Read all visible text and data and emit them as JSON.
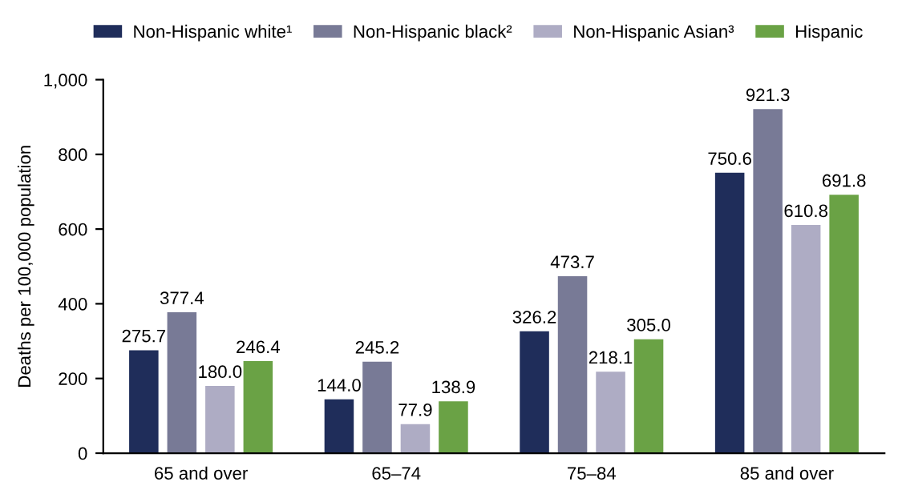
{
  "chart_data": {
    "type": "bar",
    "ylabel": "Deaths per 100,000 population",
    "categories": [
      "65 and over",
      "65–74",
      "75–84",
      "85 and over"
    ],
    "series": [
      {
        "name": "Non-Hispanic white¹",
        "color": "#1f2d5a",
        "values": [
          275.7,
          144.0,
          326.2,
          750.6
        ],
        "value_labels": [
          "275.7",
          "144.0",
          "326.2",
          "750.6"
        ]
      },
      {
        "name": "Non-Hispanic black²",
        "color": "#787a96",
        "values": [
          377.4,
          245.2,
          473.7,
          921.3
        ],
        "value_labels": [
          "377.4",
          "245.2",
          "473.7",
          "921.3"
        ]
      },
      {
        "name": "Non-Hispanic Asian³",
        "color": "#aeacc4",
        "values": [
          180.0,
          77.9,
          218.1,
          610.8
        ],
        "value_labels": [
          "180.0",
          "77.9",
          "218.1",
          "610.8"
        ]
      },
      {
        "name": "Hispanic",
        "color": "#6aa245",
        "values": [
          246.4,
          138.9,
          305.0,
          691.8
        ],
        "value_labels": [
          "246.4",
          "138.9",
          "305.0",
          "691.8"
        ]
      }
    ],
    "ylim": [
      0,
      1000
    ],
    "yticks": [
      {
        "value": 0,
        "label": "0"
      },
      {
        "value": 200,
        "label": "200"
      },
      {
        "value": 400,
        "label": "400"
      },
      {
        "value": 600,
        "label": "600"
      },
      {
        "value": 800,
        "label": "800"
      },
      {
        "value": 1000,
        "label": "1,000"
      }
    ],
    "grid": false,
    "legend": "top"
  }
}
